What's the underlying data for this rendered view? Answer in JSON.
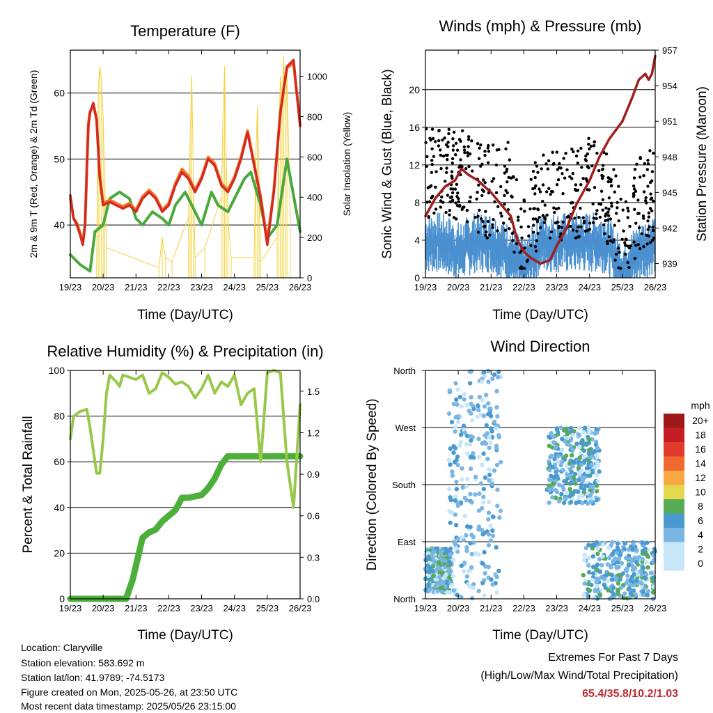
{
  "chart_data": [
    {
      "type": "line",
      "title": "Temperature (F)",
      "xlabel": "Time (Day/UTC)",
      "ylabel": "2m & 9m T (Red, Orange) & 2m Td (Green)",
      "ylabel_right": "Solar Insolation (Yellow)",
      "x_ticks": [
        "19/23",
        "20/23",
        "21/23",
        "22/23",
        "23/23",
        "24/23",
        "25/23",
        "26/23"
      ],
      "ylim": [
        32,
        66.5
      ],
      "y_ticks": [
        40,
        50,
        60
      ],
      "ylim_right": [
        0,
        1130
      ],
      "y_ticks_right": [
        0,
        200,
        400,
        600,
        800,
        1000
      ],
      "grid": "horizontal",
      "colors": {
        "t2m": "#d42a20",
        "t9m": "#f07a28",
        "td2m": "#4aa83c",
        "solar": "#f2d442"
      },
      "series": [
        {
          "x": [
            0,
            0.1,
            0.2,
            0.3,
            0.38,
            0.45,
            0.5,
            0.55,
            0.6,
            0.7,
            0.8,
            0.9,
            1.0,
            1.2,
            1.4,
            1.6,
            1.8,
            2.0,
            2.2,
            2.4,
            2.6,
            2.8,
            3.0,
            3.2,
            3.4,
            3.6,
            3.8,
            4.0,
            4.2,
            4.4,
            4.6,
            4.8,
            5.0,
            5.2,
            5.4,
            5.6,
            5.8,
            6.0,
            6.2,
            6.4,
            6.6,
            6.8,
            7.0
          ],
          "values": [
            44.5,
            41,
            40,
            38.5,
            37,
            40,
            48,
            55,
            57,
            58.5,
            56,
            47,
            43,
            43.5,
            43,
            42.5,
            43,
            42,
            44,
            45,
            44,
            42,
            43,
            46,
            48,
            47,
            45,
            47,
            50,
            49,
            46,
            45,
            47,
            50,
            54,
            49,
            44,
            37,
            45,
            57,
            64,
            65,
            55
          ]
        },
        {
          "x": [
            0,
            0.1,
            0.2,
            0.3,
            0.38,
            0.45,
            0.5,
            0.55,
            0.6,
            0.7,
            0.8,
            0.9,
            1.0,
            1.2,
            1.4,
            1.6,
            1.8,
            2.0,
            2.2,
            2.4,
            2.6,
            2.8,
            3.0,
            3.2,
            3.4,
            3.6,
            3.8,
            4.0,
            4.2,
            4.4,
            4.6,
            4.8,
            5.0,
            5.2,
            5.4,
            5.6,
            5.8,
            6.0,
            6.2,
            6.4,
            6.6,
            6.8,
            7.0
          ],
          "values": [
            44,
            41,
            40.3,
            38.8,
            37.3,
            40.2,
            48.3,
            55.3,
            57.2,
            58.2,
            56,
            47.3,
            43.3,
            43.8,
            43.3,
            42.8,
            43.3,
            42.3,
            44.3,
            45.3,
            44.3,
            42.3,
            43.3,
            46.3,
            48.5,
            47.4,
            45.3,
            47.3,
            50.3,
            49.3,
            46.3,
            45.3,
            47.3,
            50.3,
            54.3,
            49.3,
            44.3,
            37.5,
            45.3,
            57.2,
            63.8,
            64.5,
            55.3
          ]
        },
        {
          "x": [
            0,
            0.3,
            0.6,
            0.75,
            1.0,
            1.2,
            1.5,
            1.8,
            2.0,
            2.2,
            2.5,
            2.8,
            3.0,
            3.2,
            3.5,
            3.7,
            4.0,
            4.3,
            4.5,
            4.8,
            5.0,
            5.3,
            5.5,
            5.8,
            6.0,
            6.3,
            6.6,
            7.0
          ],
          "values": [
            35.5,
            34,
            33,
            39,
            40,
            44,
            45,
            44,
            41,
            40,
            42,
            41,
            40,
            43,
            45,
            43,
            40,
            45,
            43,
            42,
            44,
            47,
            48,
            43,
            38,
            40,
            50,
            39
          ]
        },
        {
          "x": [
            0.8,
            0.85,
            0.9,
            0.95,
            1.0,
            1.05,
            1.1,
            2.7,
            2.8,
            2.9,
            3.1,
            3.6,
            3.65,
            3.7,
            3.75,
            3.8,
            4.1,
            4.6,
            4.65,
            4.7,
            4.75,
            4.8,
            4.9,
            5.6,
            5.65,
            5.7,
            5.75,
            5.8,
            6.3,
            6.35,
            6.4,
            6.45,
            6.5,
            6.55,
            6.6,
            6.7
          ],
          "values": [
            0,
            950,
            1050,
            980,
            800,
            500,
            150,
            50,
            200,
            100,
            80,
            300,
            700,
            1000,
            500,
            100,
            150,
            400,
            800,
            1050,
            600,
            300,
            100,
            100,
            600,
            850,
            500,
            80,
            200,
            700,
            1000,
            900,
            1100,
            800,
            1000,
            300
          ]
        }
      ]
    },
    {
      "type": "line",
      "title": "Winds (mph) & Pressure (mb)",
      "xlabel": "Time (Day/UTC)",
      "ylabel": "Sonic Wind & Gust (Blue, Black)",
      "ylabel_right": "Station Pressure (Maroon)",
      "x_ticks": [
        "19/23",
        "20/23",
        "21/23",
        "22/23",
        "23/23",
        "24/23",
        "25/23",
        "26/23"
      ],
      "ylim": [
        0,
        24.2
      ],
      "y_ticks": [
        0,
        4,
        8,
        12,
        16,
        20
      ],
      "ylim_right": [
        937.8,
        957
      ],
      "y_ticks_right": [
        939,
        942,
        945,
        948,
        951,
        954,
        957
      ],
      "grid": "horizontal",
      "colors": {
        "wind": "#4a90d0",
        "gust": "#000000",
        "pressure": "#a01e1e"
      },
      "series": [
        {
          "x": [
            0,
            0.5,
            1,
            1.5,
            2,
            2.5,
            3,
            3.5,
            4,
            4.5,
            5,
            5.5,
            6,
            6.5,
            7
          ],
          "values": [
            4,
            4,
            3,
            4,
            4,
            3,
            1,
            4,
            4,
            4,
            4,
            4,
            1,
            3,
            4
          ]
        },
        {
          "x": [
            0,
            0.5,
            1,
            1.5,
            2,
            2.5,
            3,
            3.5,
            4,
            4.5,
            5,
            5.5,
            6,
            6.5,
            7
          ],
          "values": [
            11,
            12,
            11,
            10,
            9,
            10,
            4,
            9,
            9,
            9,
            10,
            9,
            4,
            8,
            9
          ]
        },
        {
          "x": [
            0,
            0.3,
            0.6,
            0.9,
            1.1,
            1.3,
            1.6,
            2.0,
            2.3,
            2.6,
            2.8,
            3.0,
            3.2,
            3.5,
            3.8,
            4.0,
            4.3,
            4.6,
            5.0,
            5.3,
            5.6,
            6.0,
            6.3,
            6.5,
            6.7,
            6.8,
            6.9,
            7.0
          ],
          "values": [
            943,
            944.5,
            945.5,
            946,
            947,
            946.5,
            946,
            945,
            944,
            943,
            941,
            940,
            939.5,
            939,
            939.3,
            940.5,
            942,
            944,
            946,
            948,
            949.5,
            951,
            953,
            954.5,
            955,
            954.5,
            955,
            956.5
          ]
        }
      ]
    },
    {
      "type": "line",
      "title": "Relative Humidity (%) & Precipitation (in)",
      "xlabel": "Time (Day/UTC)",
      "ylabel": "Percent & Total Rainfall",
      "x_ticks": [
        "19/23",
        "20/23",
        "21/23",
        "22/23",
        "23/23",
        "24/23",
        "25/23",
        "26/23"
      ],
      "ylim": [
        0,
        100
      ],
      "y_ticks": [
        0,
        20,
        40,
        60,
        80,
        100
      ],
      "ylim_right": [
        0,
        1.65
      ],
      "y_ticks_right": [
        "0.0",
        "0.3",
        "0.6",
        "0.9",
        "1.2",
        "1.5"
      ],
      "grid": "horizontal",
      "colors": {
        "rh": "#98c84a",
        "precip": "#4caf3a"
      },
      "series": [
        {
          "x": [
            0,
            0.1,
            0.3,
            0.5,
            0.6,
            0.8,
            0.9,
            1.0,
            1.1,
            1.2,
            1.4,
            1.5,
            1.6,
            1.8,
            2.0,
            2.2,
            2.4,
            2.6,
            2.8,
            3.0,
            3.2,
            3.4,
            3.6,
            3.8,
            4.0,
            4.2,
            4.4,
            4.6,
            4.8,
            5.0,
            5.2,
            5.4,
            5.6,
            5.8,
            6.0,
            6.2,
            6.4,
            6.6,
            6.8,
            7.0
          ],
          "values": [
            70,
            80,
            82,
            83,
            75,
            55,
            55,
            70,
            90,
            98,
            95,
            93,
            98,
            97,
            96,
            98,
            90,
            92,
            99,
            97,
            94,
            95,
            93,
            88,
            92,
            98,
            90,
            95,
            93,
            98,
            85,
            90,
            92,
            60,
            99,
            100,
            99,
            60,
            40,
            85
          ]
        },
        {
          "x": [
            0,
            0.5,
            1.0,
            1.5,
            1.7,
            1.9,
            2.0,
            2.2,
            2.4,
            2.6,
            2.8,
            3.0,
            3.2,
            3.4,
            3.6,
            3.8,
            4.0,
            4.2,
            4.4,
            4.6,
            4.8,
            5.0,
            5.2,
            5.4,
            5.6,
            5.8,
            6.0,
            6.5,
            7.0
          ],
          "values": [
            0,
            0,
            0,
            0,
            0,
            0.14,
            0.24,
            0.44,
            0.48,
            0.5,
            0.56,
            0.6,
            0.64,
            0.73,
            0.73,
            0.74,
            0.75,
            0.8,
            0.87,
            0.97,
            1.03,
            1.03,
            1.03,
            1.03,
            1.03,
            1.03,
            1.03,
            1.03,
            1.03
          ]
        }
      ]
    },
    {
      "type": "scatter",
      "title": "Wind Direction",
      "xlabel": "Time (Day/UTC)",
      "ylabel": "Direction (Colored By Speed)",
      "x_ticks": [
        "19/23",
        "20/23",
        "21/23",
        "22/23",
        "23/23",
        "24/23",
        "25/23",
        "26/23"
      ],
      "y_ticks": [
        "North",
        "East",
        "South",
        "West",
        "North"
      ],
      "ylim": [
        0,
        360
      ],
      "grid": "horizontal",
      "legend": {
        "title": "mph",
        "position": "right",
        "labels": [
          "20+",
          "18",
          "16",
          "14",
          "12",
          "10",
          "8",
          "6",
          "4",
          "2",
          "0"
        ],
        "colors": [
          "#9e1a1a",
          "#c41e24",
          "#e03a2c",
          "#f06a30",
          "#f7a842",
          "#e4d94c",
          "#56ab54",
          "#4a9ad0",
          "#7ab6e4",
          "#c6e6f8",
          "#c6e6f8"
        ]
      },
      "point_groups": [
        {
          "x_range": [
            0,
            0.8
          ],
          "dir_range": [
            10,
            80
          ],
          "speed": "mixed"
        },
        {
          "x_range": [
            0.7,
            2.3
          ],
          "dir_range": [
            0,
            360
          ],
          "speed": "low"
        },
        {
          "x_range": [
            3.7,
            5.3
          ],
          "dir_range": [
            150,
            270
          ],
          "speed": "mixed"
        },
        {
          "x_range": [
            4.8,
            7.0
          ],
          "dir_range": [
            0,
            90
          ],
          "speed": "mixed"
        }
      ]
    }
  ],
  "footer": {
    "location": "Location: Claryville",
    "elevation": "Station elevation: 583.692 m",
    "latlon": "Station lat/lon: 41.9789; -74.5173",
    "created": "Figure created on Mon, 2025-05-26, at 23:50 UTC",
    "recent": "Most recent data timestamp: 2025/05/26 23:15:00"
  },
  "extremes": {
    "title": "Extremes For Past 7 Days",
    "subtitle": "(High/Low/Max Wind/Total Precipitation)",
    "values": "65.4/35.8/10.2/1.03"
  }
}
